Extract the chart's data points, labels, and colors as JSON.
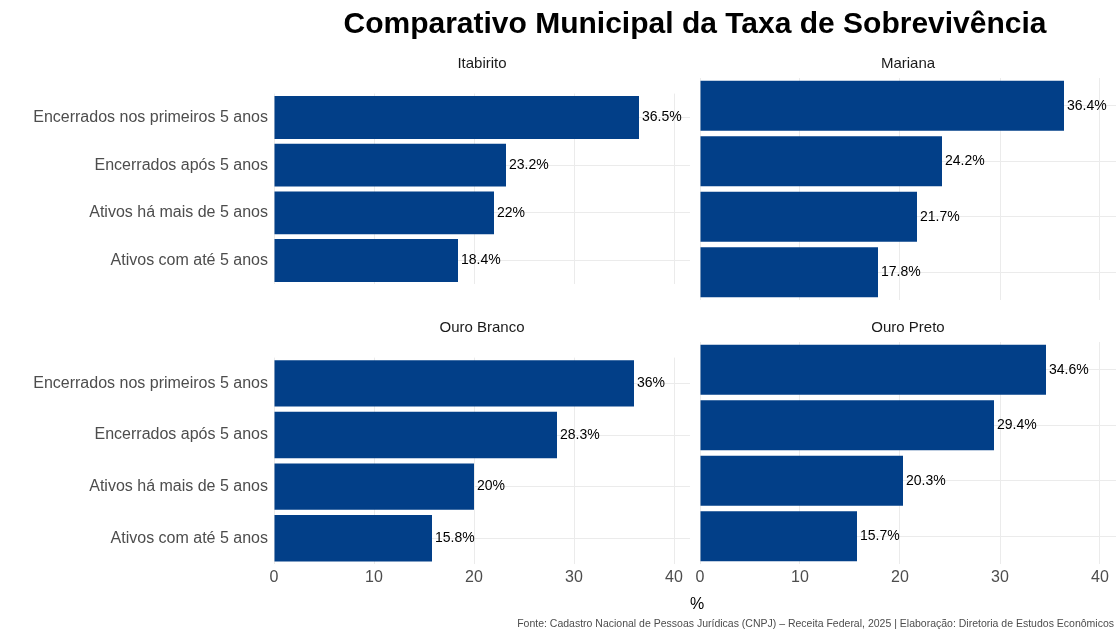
{
  "chart_data": [
    {
      "type": "bar",
      "orientation": "horizontal",
      "title": "Comparativo Municipal da Taxa de Sobrevivência",
      "subtitle": "Itabirito",
      "categories": [
        "Encerrados nos primeiros 5 anos",
        "Encerrados após 5 anos",
        "Ativos há mais de 5 anos",
        "Ativos com até 5 anos"
      ],
      "values": [
        36.5,
        23.2,
        22,
        18.4
      ],
      "value_labels": [
        "36.5%",
        "23.2%",
        "22%",
        "18.4%"
      ],
      "color": "#023f88",
      "xlim": [
        0,
        41.6
      ],
      "xticks": [
        0,
        10,
        20,
        30,
        40
      ],
      "grid": true,
      "tick_labels": "y"
    },
    {
      "type": "bar",
      "orientation": "horizontal",
      "subtitle": "Mariana",
      "categories": [
        null,
        null,
        null,
        null
      ],
      "values": [
        36.4,
        24.2,
        21.7,
        17.8
      ],
      "value_labels": [
        "36.4%",
        "24.2%",
        "21.7%",
        "17.8%"
      ],
      "color": "#023f88",
      "xlim": [
        0,
        41.6
      ],
      "xticks": [
        0,
        10,
        20,
        30,
        40
      ],
      "grid": true,
      "tick_labels": false
    },
    {
      "type": "bar",
      "orientation": "horizontal",
      "subtitle": "Ouro Branco",
      "xlabel": "%",
      "categories": [
        "Encerrados nos primeiros 5 anos",
        "Encerrados após 5 anos",
        "Ativos há mais de 5 anos",
        "Ativos com até 5 anos"
      ],
      "values": [
        36,
        28.3,
        20,
        15.8
      ],
      "value_labels": [
        "36%",
        "28.3%",
        "20%",
        "15.8%"
      ],
      "color": "#023f88",
      "xlim": [
        0,
        41.6
      ],
      "xticks": [
        0,
        10,
        20,
        30,
        40
      ],
      "grid": true
    },
    {
      "type": "bar",
      "orientation": "horizontal",
      "subtitle": "Ouro Preto",
      "categories": [
        null,
        null,
        null,
        null
      ],
      "values": [
        34.6,
        29.4,
        20.3,
        15.7
      ],
      "value_labels": [
        "34.6%",
        "29.4%",
        "20.3%",
        "15.7%"
      ],
      "color": "#023f88",
      "xlim": [
        0,
        41.6
      ],
      "xticks": [
        0,
        10,
        20,
        30,
        40
      ],
      "grid": true,
      "tick_labels": "x",
      "annotations": [
        "Fonte: Cadastro Nacional de Pessoas Jurídicas (CNPJ) – Receita Federal, 2025 | Elaboração: Diretoria de Estudos Econômicos"
      ]
    }
  ]
}
